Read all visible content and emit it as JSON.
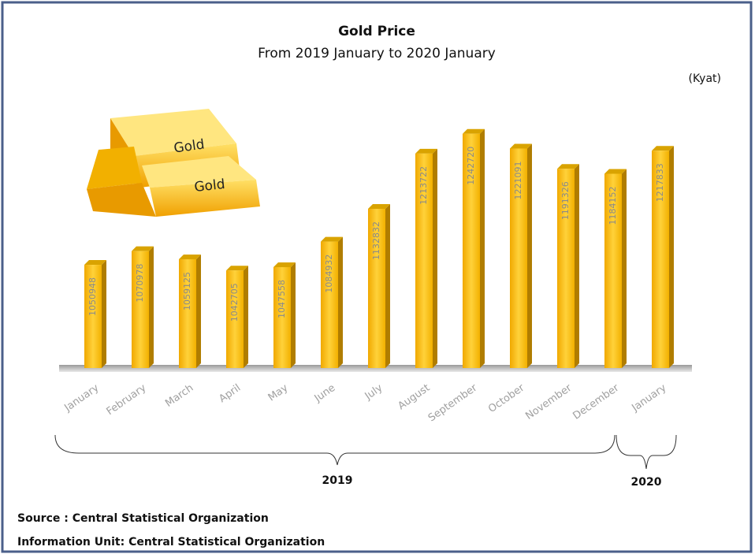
{
  "chart_data": {
    "type": "bar",
    "title": "Gold Price",
    "subtitle": "From 2019 January to 2020 January",
    "unit_label": "(Kyat)",
    "categories": [
      "January",
      "February",
      "March",
      "April",
      "May",
      "June",
      "July",
      "August",
      "September",
      "October",
      "November",
      "December",
      "January"
    ],
    "values": [
      1050948,
      1070978,
      1059125,
      1042705,
      1047558,
      1084932,
      1132832,
      1213722,
      1242720,
      1221091,
      1191326,
      1184152,
      1217833
    ],
    "color": "#f5b800",
    "ylim": [
      900000,
      1300000
    ],
    "group_labels": [
      "2019",
      "2020"
    ]
  },
  "image_labels": [
    "Gold",
    "Gold"
  ],
  "footer": {
    "source": "Source :  Central Statistical Organization",
    "information_unit": "Information Unit:  Central Statistical Organization"
  }
}
